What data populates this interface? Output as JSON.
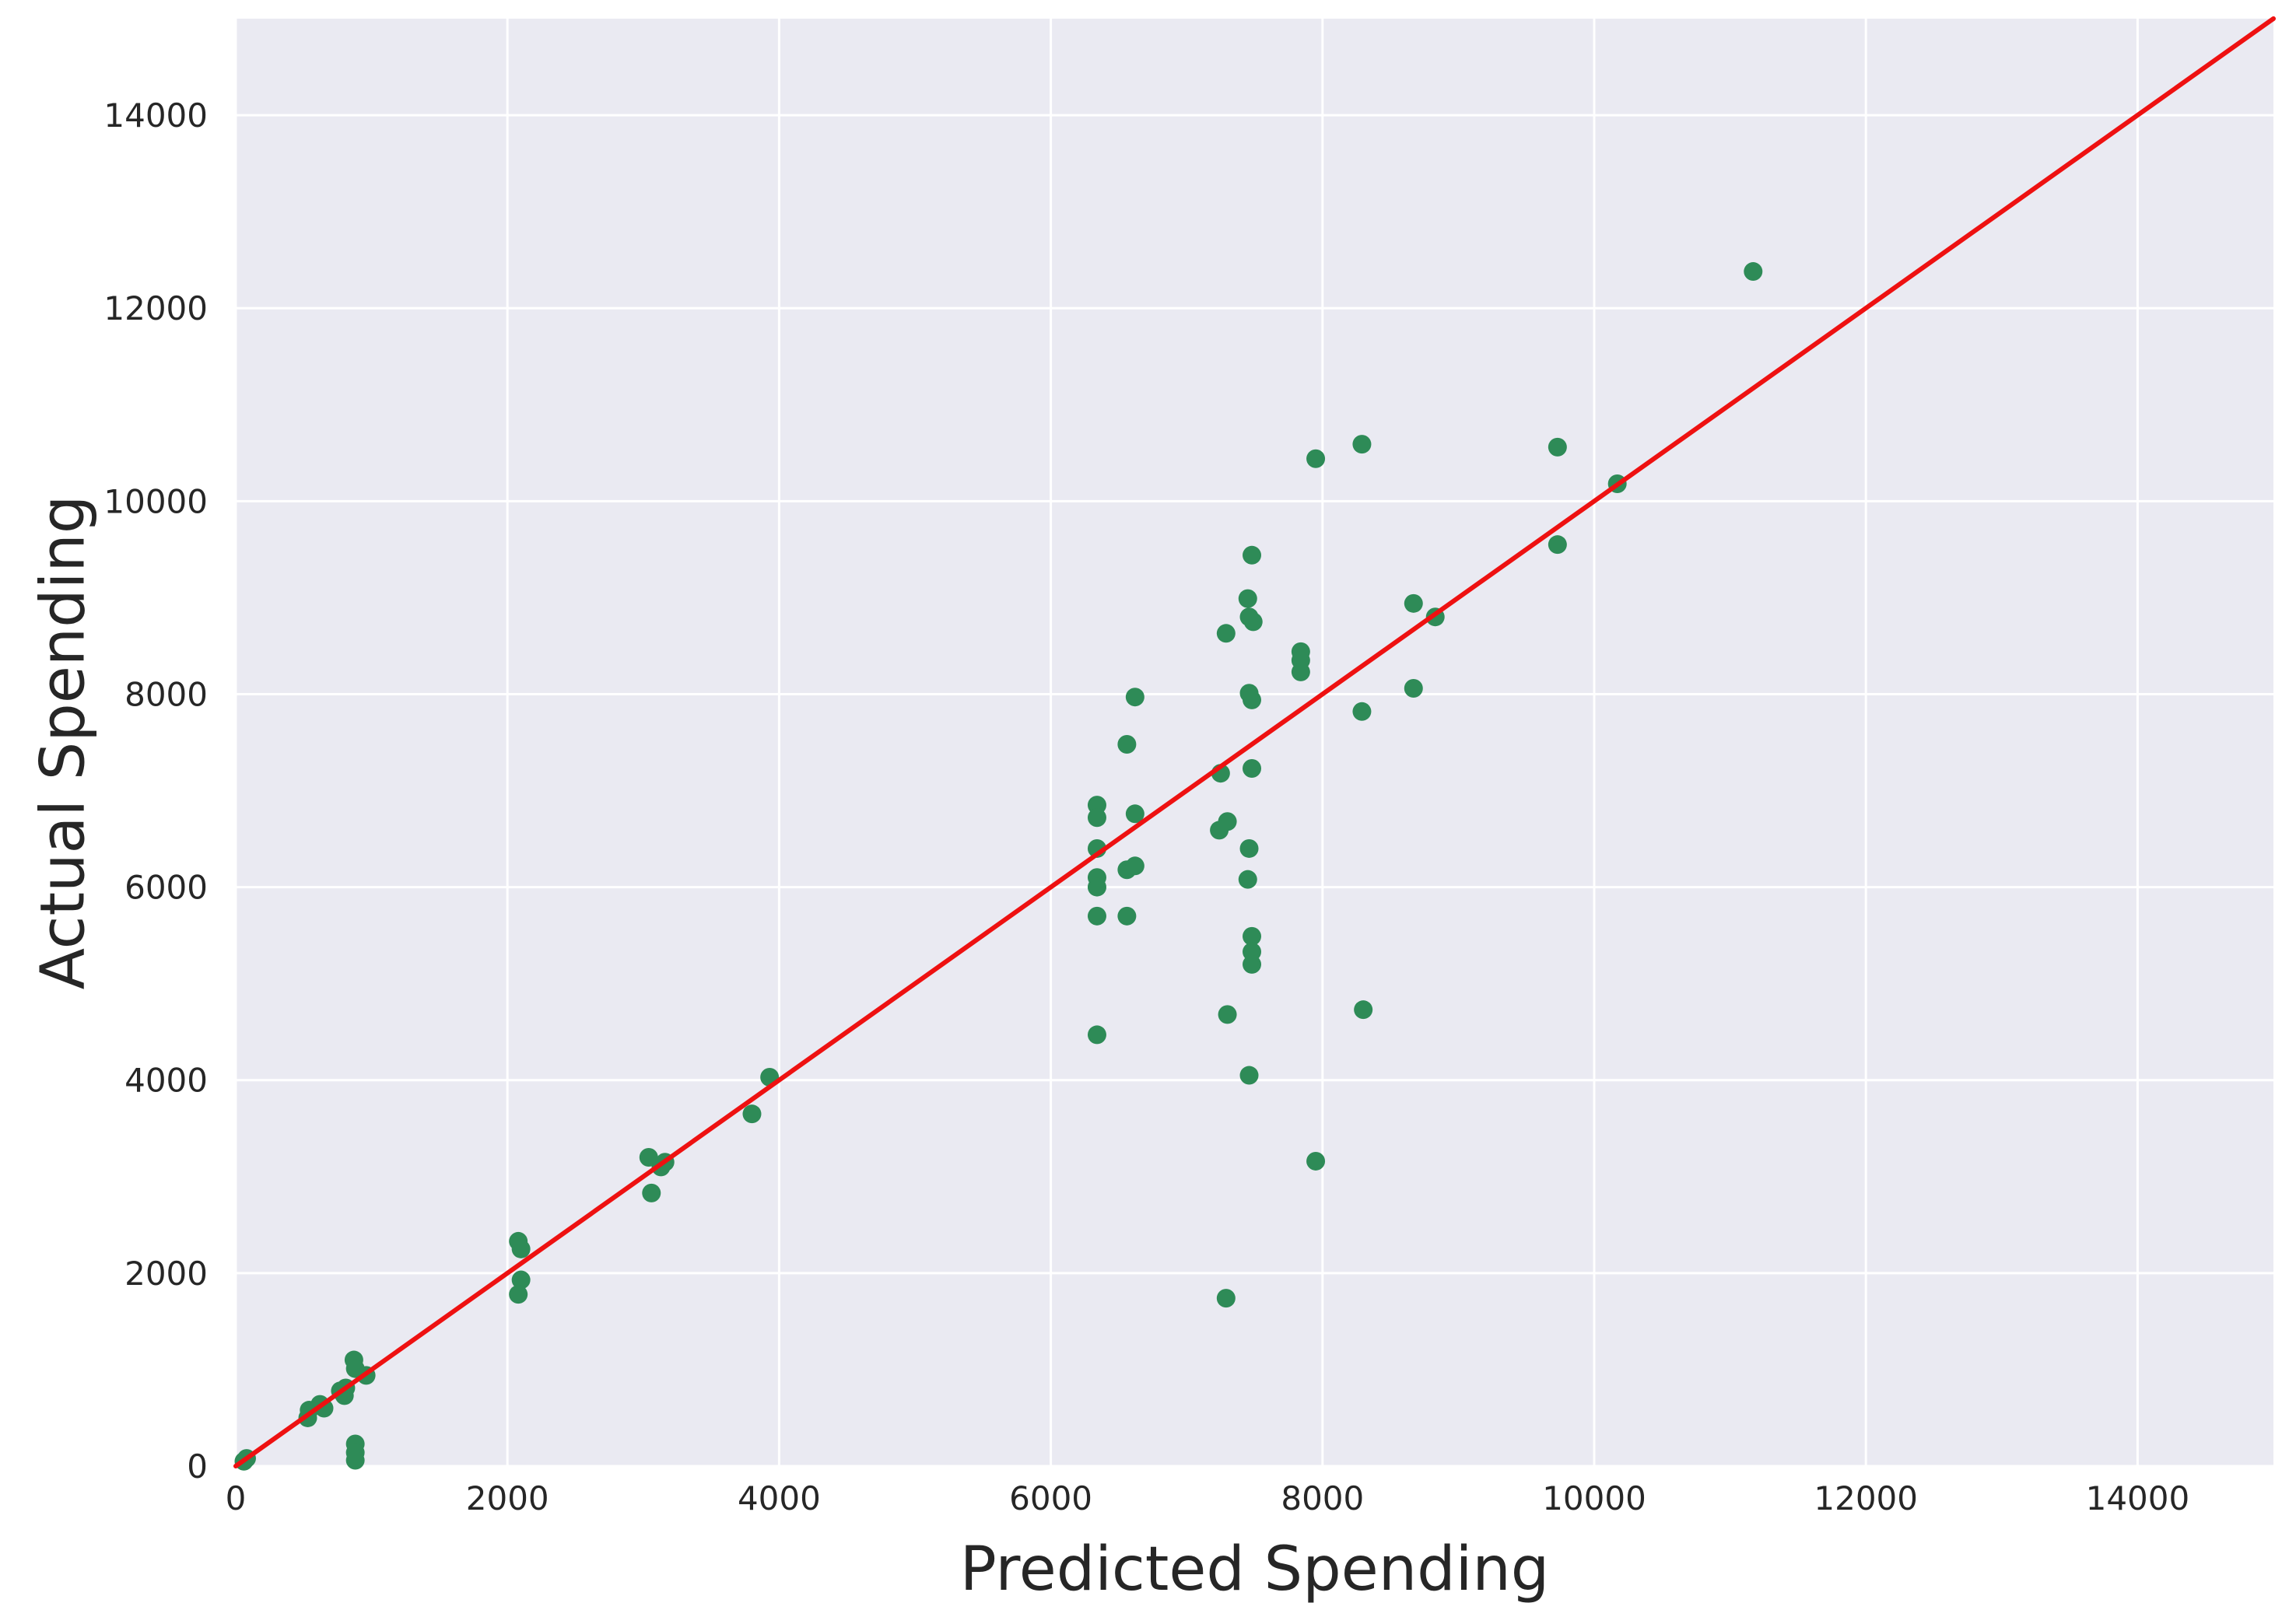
{
  "chart_data": {
    "type": "scatter",
    "title": "",
    "xlabel": "Predicted Spending",
    "ylabel": "Actual Spending",
    "xlim": [
      0,
      15000
    ],
    "ylim": [
      0,
      15000
    ],
    "grid": true,
    "x_ticks": [
      0,
      2000,
      4000,
      6000,
      8000,
      10000,
      12000,
      14000
    ],
    "y_ticks": [
      0,
      2000,
      4000,
      6000,
      8000,
      10000,
      12000,
      14000
    ],
    "x_tick_labels": [
      "0",
      "2000",
      "4000",
      "6000",
      "8000",
      "10000",
      "12000",
      "14000"
    ],
    "y_tick_labels": [
      "0",
      "2000",
      "4000",
      "6000",
      "8000",
      "10000",
      "12000",
      "14000"
    ],
    "fit_line": {
      "x": [
        0,
        15000
      ],
      "y": [
        0,
        15000
      ]
    },
    "series": [
      {
        "points": [
          [
            60,
            50
          ],
          [
            80,
            80
          ],
          [
            530,
            500
          ],
          [
            540,
            580
          ],
          [
            620,
            640
          ],
          [
            650,
            600
          ],
          [
            770,
            780
          ],
          [
            800,
            730
          ],
          [
            810,
            810
          ],
          [
            870,
            1100
          ],
          [
            880,
            1010
          ],
          [
            960,
            940
          ],
          [
            880,
            230
          ],
          [
            880,
            140
          ],
          [
            880,
            60
          ],
          [
            2080,
            2330
          ],
          [
            2100,
            2250
          ],
          [
            2100,
            1930
          ],
          [
            2080,
            1780
          ],
          [
            3040,
            3200
          ],
          [
            3060,
            2830
          ],
          [
            3130,
            3100
          ],
          [
            3160,
            3150
          ],
          [
            3800,
            3650
          ],
          [
            3930,
            4030
          ],
          [
            6340,
            6850
          ],
          [
            6340,
            6720
          ],
          [
            6340,
            6400
          ],
          [
            6340,
            6100
          ],
          [
            6340,
            6000
          ],
          [
            6340,
            5700
          ],
          [
            6340,
            4470
          ],
          [
            6560,
            7480
          ],
          [
            6560,
            6180
          ],
          [
            6560,
            5700
          ],
          [
            6620,
            7970
          ],
          [
            6620,
            6760
          ],
          [
            6620,
            6220
          ],
          [
            7250,
            7180
          ],
          [
            7240,
            6590
          ],
          [
            7300,
            6680
          ],
          [
            7290,
            8630
          ],
          [
            7300,
            4680
          ],
          [
            7290,
            1740
          ],
          [
            7450,
            8990
          ],
          [
            7480,
            9440
          ],
          [
            7460,
            8800
          ],
          [
            7490,
            8750
          ],
          [
            7460,
            8010
          ],
          [
            7480,
            7940
          ],
          [
            7480,
            7230
          ],
          [
            7460,
            6400
          ],
          [
            7450,
            6080
          ],
          [
            7480,
            5490
          ],
          [
            7480,
            5330
          ],
          [
            7480,
            5200
          ],
          [
            7460,
            4050
          ],
          [
            7840,
            8440
          ],
          [
            7840,
            8350
          ],
          [
            7840,
            8230
          ],
          [
            7950,
            10440
          ],
          [
            7950,
            3160
          ],
          [
            8290,
            10590
          ],
          [
            8290,
            7820
          ],
          [
            8300,
            4730
          ],
          [
            8670,
            8940
          ],
          [
            8670,
            8060
          ],
          [
            8830,
            8800
          ],
          [
            9730,
            10560
          ],
          [
            9730,
            9550
          ],
          [
            10170,
            10180
          ],
          [
            11170,
            12380
          ]
        ]
      }
    ]
  },
  "colors": {
    "background": "#ffffff",
    "plot_background": "#eaeaf2",
    "grid": "#ffffff",
    "points": "#2e8b57",
    "fit_line": "#ee1111",
    "text": "#262626"
  }
}
